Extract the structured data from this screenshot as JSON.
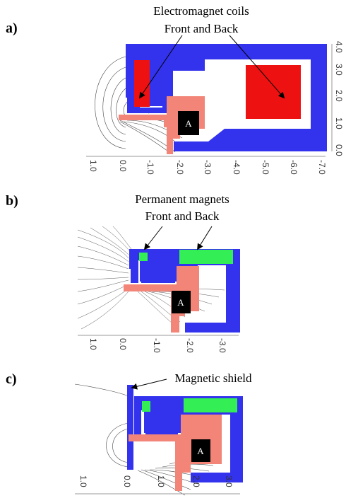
{
  "panel_a": {
    "label": "a)",
    "annotation_line1": "Electromagnet coils",
    "annotation_line2": "Front and Back",
    "box_label": "A",
    "x_ticks": [
      "1.0",
      "0.0",
      "-1.0",
      "-2.0",
      "-3.0",
      "-4.0",
      "-5.0",
      "-6.0",
      "-7.0"
    ],
    "y_ticks": [
      "0.0",
      "1.0",
      "2.0",
      "3.0",
      "4.0"
    ]
  },
  "panel_b": {
    "label": "b)",
    "annotation_line1": "Permanent magnets",
    "annotation_line2": "Front and Back",
    "box_label": "A",
    "x_ticks": [
      "1.0",
      "0.0",
      "-1.0",
      "-2.0",
      "-3.0"
    ]
  },
  "panel_c": {
    "label": "c)",
    "annotation": "Magnetic shield",
    "box_label": "A",
    "x_ticks": [
      "1.0",
      "0.0",
      "1.0",
      "2.0",
      "3.0"
    ]
  },
  "colors": {
    "iron": "#3333ee",
    "coil": "#ee1111",
    "magnet": "#33ee55",
    "pole": "#f28578"
  }
}
